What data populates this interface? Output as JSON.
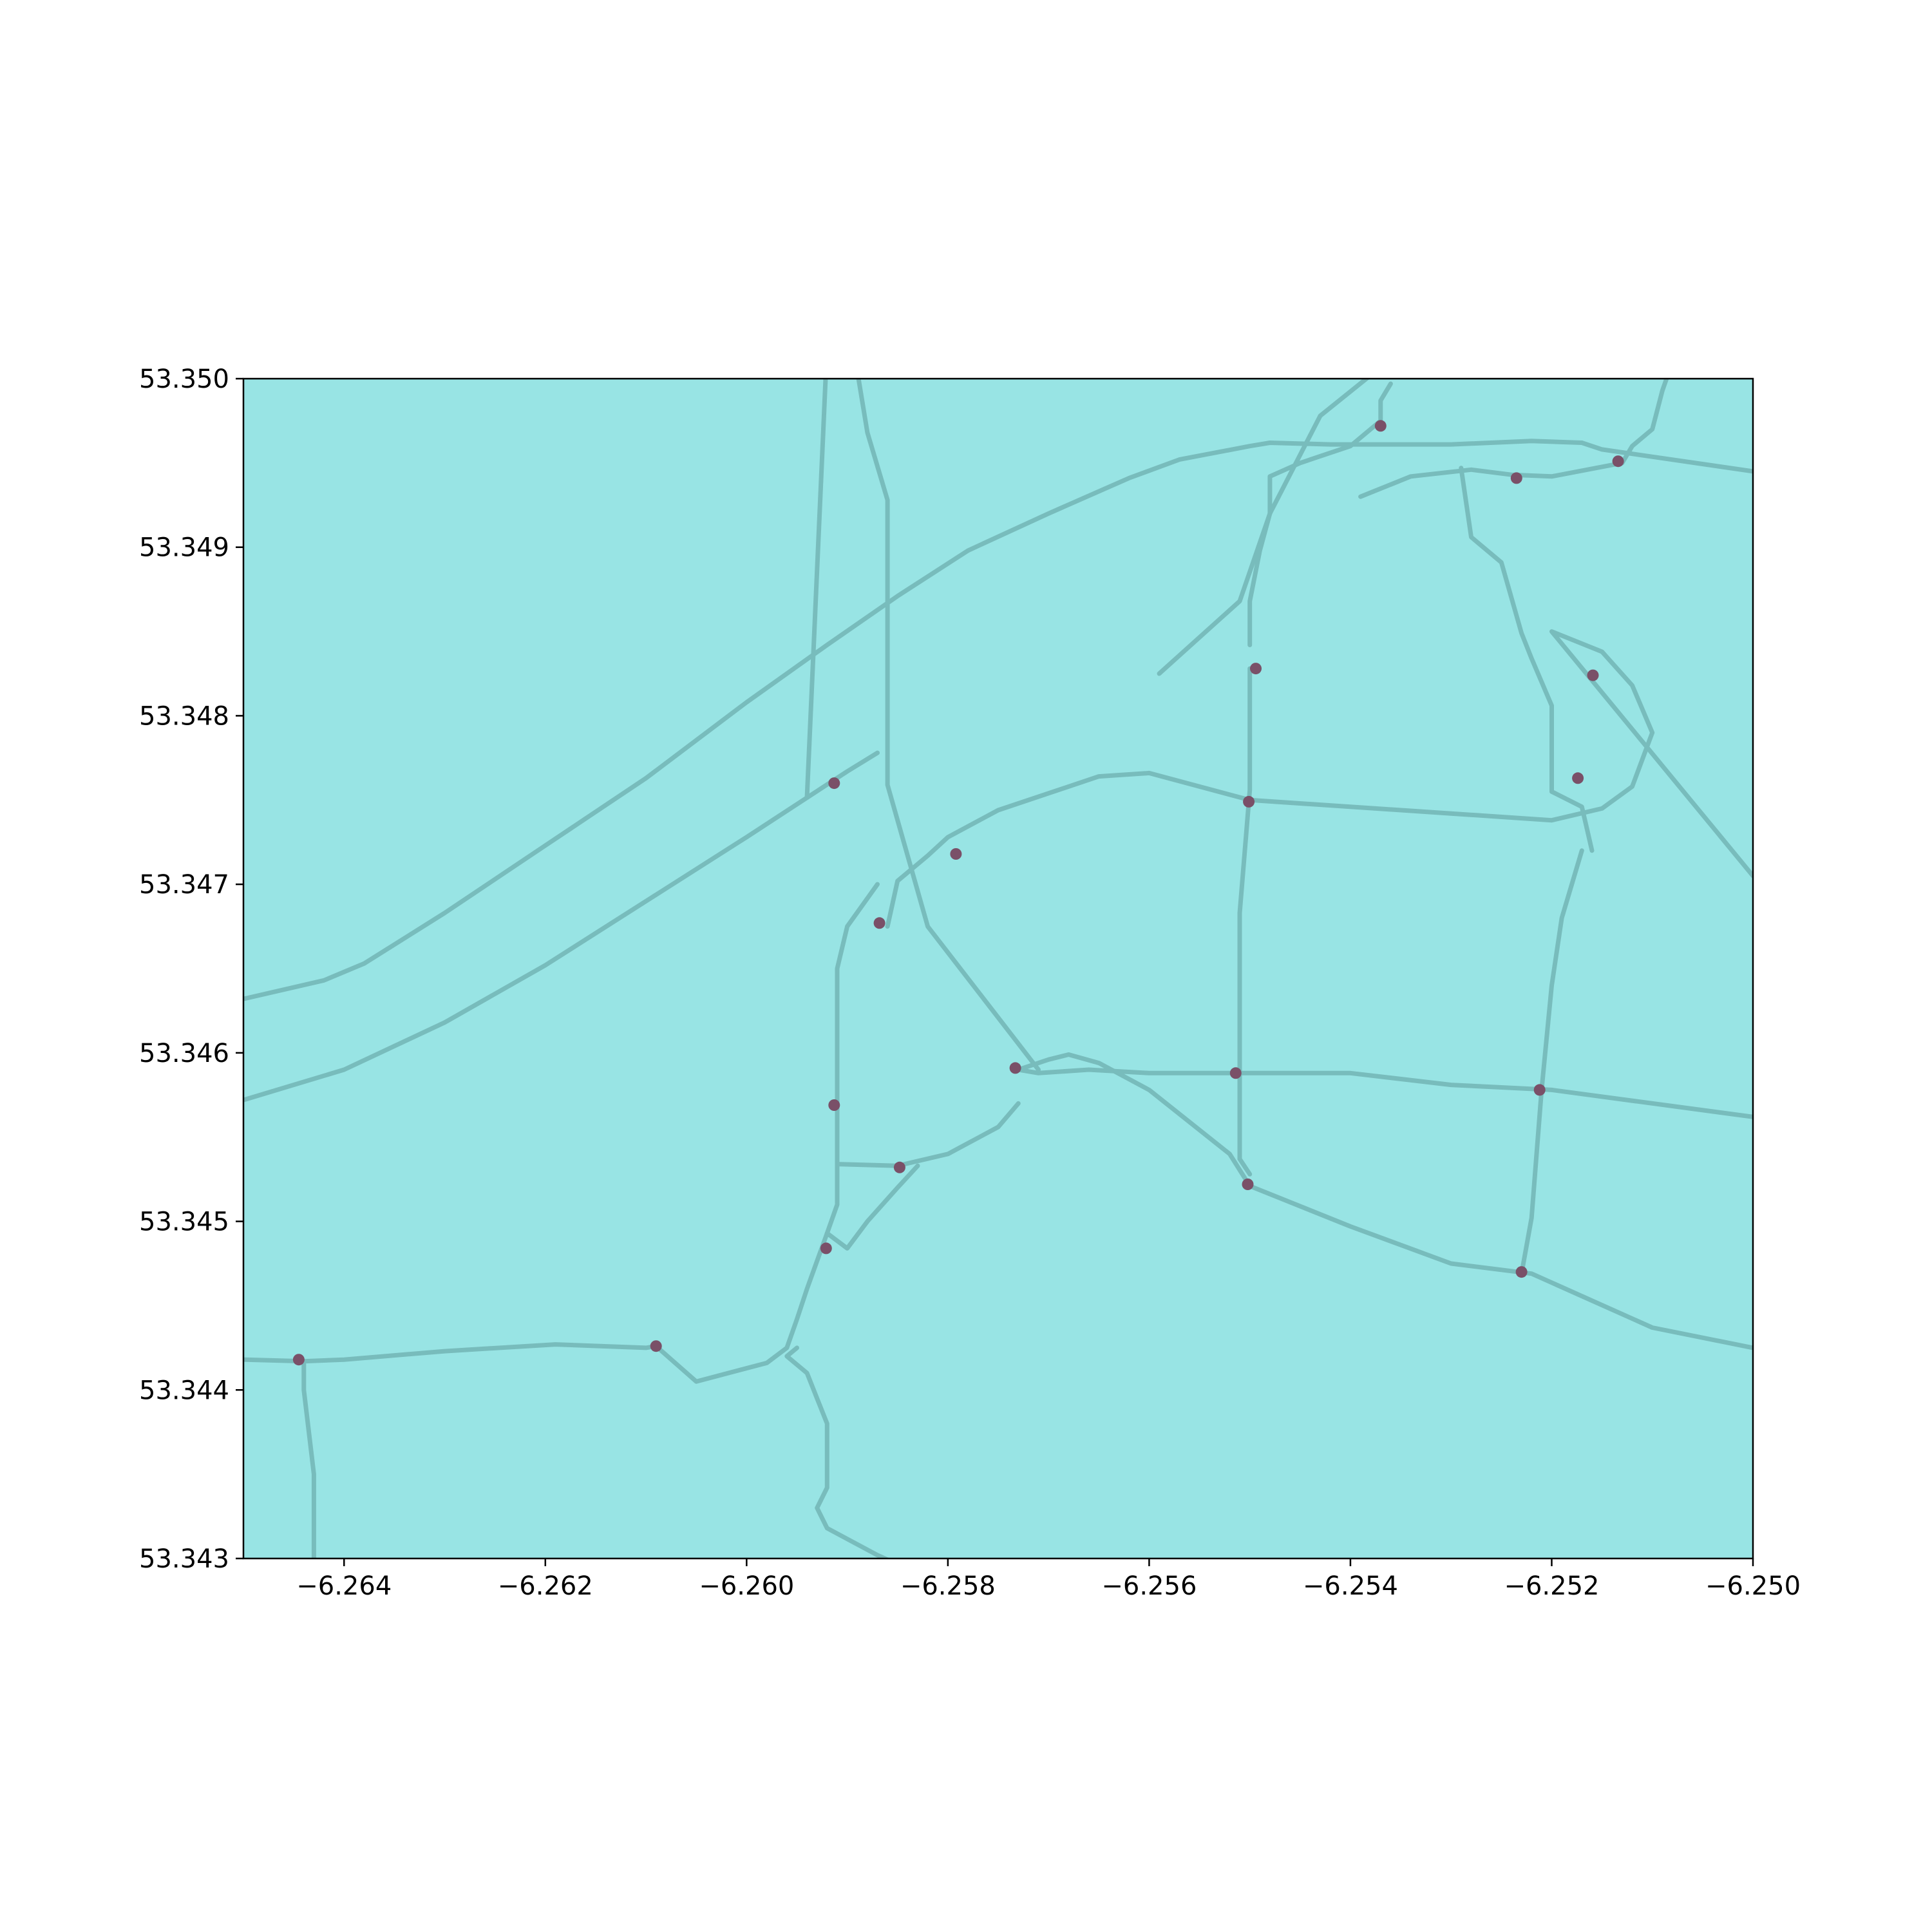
{
  "colors": {
    "background": "#ffffff",
    "land": "#98e4e4",
    "road": "#78bcbc",
    "node": "#7a5068",
    "axis": "#000000"
  },
  "chart_data": {
    "type": "map",
    "xlim": [
      -6.265,
      -6.25
    ],
    "ylim": [
      53.343,
      53.35
    ],
    "x_ticks": [
      {
        "value": -6.264,
        "label": "−6.264"
      },
      {
        "value": -6.262,
        "label": "−6.262"
      },
      {
        "value": -6.26,
        "label": "−6.260"
      },
      {
        "value": -6.258,
        "label": "−6.258"
      },
      {
        "value": -6.256,
        "label": "−6.256"
      },
      {
        "value": -6.254,
        "label": "−6.254"
      },
      {
        "value": -6.252,
        "label": "−6.252"
      },
      {
        "value": -6.25,
        "label": "−6.250"
      }
    ],
    "y_ticks": [
      {
        "value": 53.343,
        "label": "53.343"
      },
      {
        "value": 53.344,
        "label": "53.344"
      },
      {
        "value": 53.345,
        "label": "53.345"
      },
      {
        "value": 53.346,
        "label": "53.346"
      },
      {
        "value": 53.347,
        "label": "53.347"
      },
      {
        "value": 53.348,
        "label": "53.348"
      },
      {
        "value": 53.349,
        "label": "53.349"
      },
      {
        "value": 53.35,
        "label": "53.350"
      }
    ],
    "grid": false,
    "roads": [
      [
        [
          -6.265,
          53.34632
        ],
        [
          -6.2642,
          53.34643
        ],
        [
          -6.2638,
          53.34653
        ],
        [
          -6.263,
          53.34683
        ],
        [
          -6.262,
          53.34723
        ],
        [
          -6.261,
          53.34763
        ],
        [
          -6.26,
          53.34808
        ],
        [
          -6.2592,
          53.34842
        ],
        [
          -6.2585,
          53.34871
        ],
        [
          -6.2578,
          53.34898
        ],
        [
          -6.257,
          53.3492
        ],
        [
          -6.2562,
          53.34941
        ],
        [
          -6.2557,
          53.34952
        ],
        [
          -6.255,
          53.3496
        ],
        [
          -6.2548,
          53.34962
        ],
        [
          -6.2542,
          53.34961
        ],
        [
          -6.253,
          53.34961
        ],
        [
          -6.2522,
          53.34963
        ],
        [
          -6.2517,
          53.34962
        ],
        [
          -6.2515,
          53.34958
        ],
        [
          -6.25,
          53.34945
        ]
      ],
      [
        [
          -6.265,
          53.34572
        ],
        [
          -6.264,
          53.3459
        ],
        [
          -6.263,
          53.34618
        ],
        [
          -6.262,
          53.34652
        ],
        [
          -6.261,
          53.3469
        ],
        [
          -6.26,
          53.34728
        ],
        [
          -6.259,
          53.34767
        ],
        [
          -6.2587,
          53.34778
        ]
      ],
      [
        [
          -6.2605,
          53.3535
        ],
        [
          -6.26,
          53.3533
        ],
        [
          -6.2592,
          53.3502
        ],
        [
          -6.2594,
          53.34752
        ]
      ],
      [
        [
          -6.2603,
          53.3535
        ],
        [
          -6.2598,
          53.3533
        ],
        [
          -6.2588,
          53.34968
        ],
        [
          -6.2586,
          53.34928
        ],
        [
          -6.2586,
          53.34759
        ],
        [
          -6.2582,
          53.34675
        ],
        [
          -6.2571,
          53.3459
        ]
      ],
      [
        [
          -6.2586,
          53.34675
        ],
        [
          -6.2585,
          53.34702
        ],
        [
          -6.2582,
          53.34717
        ],
        [
          -6.258,
          53.34728
        ],
        [
          -6.2575,
          53.34744
        ],
        [
          -6.2565,
          53.34764
        ],
        [
          -6.256,
          53.34766
        ],
        [
          -6.255,
          53.3475
        ],
        [
          -6.253,
          53.34742
        ],
        [
          -6.252,
          53.34738
        ],
        [
          -6.2515,
          53.34745
        ],
        [
          -6.2512,
          53.34758
        ],
        [
          -6.251,
          53.3479
        ],
        [
          -6.2512,
          53.34818
        ],
        [
          -6.2515,
          53.34838
        ],
        [
          -6.252,
          53.3485
        ],
        [
          -6.25,
          53.34705
        ]
      ],
      [
        [
          -6.2559,
          53.34825
        ],
        [
          -6.2551,
          53.34868
        ],
        [
          -6.2548,
          53.3492
        ],
        [
          -6.2543,
          53.34978
        ],
        [
          -6.2538,
          53.35002
        ],
        [
          -6.2537,
          53.35012
        ],
        [
          -6.2536,
          53.3504
        ],
        [
          -6.2533,
          53.35088
        ],
        [
          -6.2531,
          53.3516
        ]
      ],
      [
        [
          -6.2539,
          53.3493
        ],
        [
          -6.2534,
          53.34942
        ],
        [
          -6.2528,
          53.34946
        ],
        [
          -6.2524,
          53.34943
        ],
        [
          -6.252,
          53.34942
        ],
        [
          -6.2513,
          53.3495
        ],
        [
          -6.2512,
          53.3496
        ],
        [
          -6.251,
          53.3497
        ],
        [
          -6.2509,
          53.34993
        ],
        [
          -6.2508,
          53.3501
        ],
        [
          -6.2508,
          53.35017
        ],
        [
          -6.2502,
          53.35021
        ]
      ],
      [
        [
          -6.255,
          53.34842
        ],
        [
          -6.255,
          53.34868
        ],
        [
          -6.2549,
          53.34898
        ],
        [
          -6.2548,
          53.3492
        ],
        [
          -6.2548,
          53.34942
        ],
        [
          -6.2545,
          53.3495
        ],
        [
          -6.254,
          53.3496
        ],
        [
          -6.2537,
          53.34975
        ],
        [
          -6.2537,
          53.34987
        ],
        [
          -6.2536,
          53.34997
        ]
      ],
      [
        [
          -6.255,
          53.34828
        ],
        [
          -6.255,
          53.34756
        ],
        [
          -6.2551,
          53.34683
        ],
        [
          -6.2551,
          53.34612
        ],
        [
          -6.2551,
          53.34537
        ],
        [
          -6.255,
          53.34528
        ]
      ],
      [
        [
          -6.2516,
          53.3472
        ],
        [
          -6.2517,
          53.34746
        ],
        [
          -6.252,
          53.34755
        ],
        [
          -6.252,
          53.34806
        ],
        [
          -6.2522,
          53.34834
        ],
        [
          -6.2523,
          53.34849
        ],
        [
          -6.2525,
          53.34891
        ],
        [
          -6.2528,
          53.34906
        ],
        [
          -6.2529,
          53.34947
        ]
      ],
      [
        [
          -6.2573,
          53.3459
        ],
        [
          -6.2571,
          53.34588
        ],
        [
          -6.2566,
          53.3459
        ],
        [
          -6.256,
          53.34588
        ],
        [
          -6.255,
          53.34588
        ],
        [
          -6.254,
          53.34588
        ],
        [
          -6.253,
          53.34581
        ],
        [
          -6.252,
          53.34578
        ],
        [
          -6.25,
          53.34562
        ]
      ],
      [
        [
          -6.2573,
          53.3459
        ],
        [
          -6.257,
          53.34596
        ],
        [
          -6.2568,
          53.34599
        ],
        [
          -6.2565,
          53.34594
        ],
        [
          -6.256,
          53.34578
        ],
        [
          -6.2552,
          53.3454
        ],
        [
          -6.255,
          53.34521
        ],
        [
          -6.254,
          53.34497
        ],
        [
          -6.253,
          53.34475
        ],
        [
          -6.2522,
          53.34469
        ],
        [
          -6.251,
          53.34437
        ],
        [
          -6.25,
          53.34425
        ]
      ],
      [
        [
          -6.2523,
          53.34469
        ],
        [
          -6.2522,
          53.34502
        ],
        [
          -6.2521,
          53.34578
        ],
        [
          -6.252,
          53.3464
        ],
        [
          -6.2519,
          53.3468
        ],
        [
          -6.2517,
          53.3472
        ]
      ],
      [
        [
          -6.2591,
          53.3453
        ],
        [
          -6.2591,
          53.3456
        ],
        [
          -6.2591,
          53.3459
        ],
        [
          -6.2591,
          53.3462
        ],
        [
          -6.2591,
          53.3465
        ],
        [
          -6.259,
          53.34675
        ],
        [
          -6.2587,
          53.347
        ]
      ],
      [
        [
          -6.2591,
          53.34534
        ],
        [
          -6.2585,
          53.34533
        ],
        [
          -6.258,
          53.3454
        ],
        [
          -6.2575,
          53.34556
        ],
        [
          -6.2573,
          53.3457
        ]
      ],
      [
        [
          -6.2591,
          53.3453
        ],
        [
          -6.2591,
          53.3451
        ],
        [
          -6.2592,
          53.34493
        ],
        [
          -6.259,
          53.34484
        ],
        [
          -6.2588,
          53.345
        ],
        [
          -6.2585,
          53.3452
        ],
        [
          -6.2583,
          53.34533
        ]
      ],
      [
        [
          -6.2592,
          53.34493
        ],
        [
          -6.2594,
          53.3446
        ],
        [
          -6.2595,
          53.34442
        ],
        [
          -6.2596,
          53.34425
        ],
        [
          -6.2598,
          53.34416
        ],
        [
          -6.2605,
          53.34405
        ],
        [
          -6.2609,
          53.34426
        ],
        [
          -6.261,
          53.34425
        ],
        [
          -6.2619,
          53.34427
        ],
        [
          -6.263,
          53.34423
        ],
        [
          -6.264,
          53.34418
        ],
        [
          -6.2644,
          53.34417
        ],
        [
          -6.265,
          53.34418
        ]
      ],
      [
        [
          -6.2595,
          53.34425
        ],
        [
          -6.2596,
          53.3442
        ],
        [
          -6.2594,
          53.3441
        ],
        [
          -6.2593,
          53.34395
        ],
        [
          -6.2592,
          53.3438
        ],
        [
          -6.2592,
          53.34359
        ],
        [
          -6.2592,
          53.34342
        ],
        [
          -6.2593,
          53.3433
        ],
        [
          -6.2592,
          53.34318
        ],
        [
          -6.2587,
          53.34302
        ],
        [
          -6.258,
          53.34283
        ],
        [
          -6.2575,
          53.34262
        ]
      ],
      [
        [
          -6.2644,
          53.34417
        ],
        [
          -6.2644,
          53.344
        ],
        [
          -6.2643,
          53.3435
        ],
        [
          -6.2643,
          53.343
        ]
      ]
    ],
    "nodes": [
      [
        -6.25913,
        53.3476
      ],
      [
        -6.25868,
        53.34677
      ],
      [
        -6.25792,
        53.34718
      ],
      [
        -6.25733,
        53.34591
      ],
      [
        -6.25913,
        53.34569
      ],
      [
        -6.25848,
        53.34532
      ],
      [
        -6.25921,
        53.34484
      ],
      [
        -6.2609,
        53.34426
      ],
      [
        -6.26445,
        53.34418
      ],
      [
        -6.25494,
        53.34828
      ],
      [
        -6.25501,
        53.34749
      ],
      [
        -6.25514,
        53.34588
      ],
      [
        -6.25502,
        53.34522
      ],
      [
        -6.2537,
        53.34972
      ],
      [
        -6.25235,
        53.34941
      ],
      [
        -6.25134,
        53.34951
      ],
      [
        -6.25159,
        53.34824
      ],
      [
        -6.25174,
        53.34763
      ],
      [
        -6.25212,
        53.34578
      ],
      [
        -6.2523,
        53.3447
      ]
    ]
  }
}
